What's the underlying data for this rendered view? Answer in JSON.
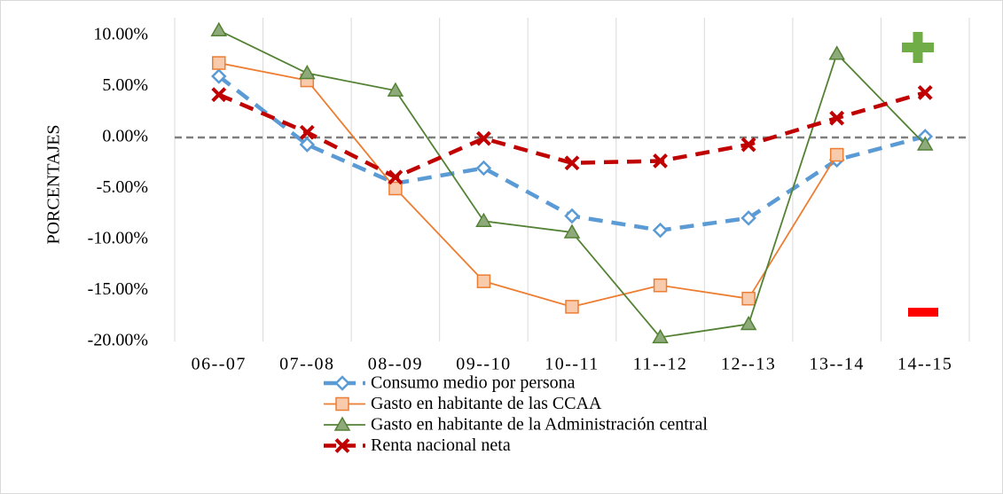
{
  "chart_data": {
    "type": "line",
    "y_label": "PORCENTAJES",
    "categories": [
      "06--07",
      "07--08",
      "08--09",
      "09--10",
      "10--11",
      "11--12",
      "12--13",
      "13--14",
      "14--15"
    ],
    "ylim": [
      -20,
      10
    ],
    "yticks": [
      {
        "value": 10,
        "label": "10.00%"
      },
      {
        "value": 5,
        "label": "5.00%"
      },
      {
        "value": 0,
        "label": "0.00%"
      },
      {
        "value": -5,
        "label": "-5.00%"
      },
      {
        "value": -10,
        "label": "-10.00%"
      },
      {
        "value": -15,
        "label": "-15.00%"
      },
      {
        "value": -20,
        "label": "-20.00%"
      }
    ],
    "series": [
      {
        "name": "Consumo medio por persona",
        "color": "#5b9bd5",
        "dashed": true,
        "marker": "diamond",
        "values": [
          6.0,
          -0.7,
          -4.5,
          -3.0,
          -7.7,
          -9.1,
          -7.9,
          -2.2,
          0.1
        ]
      },
      {
        "name": "Gasto en habitante de las CCAA",
        "color": "#ed7d31",
        "dashed": false,
        "marker": "square",
        "values": [
          7.3,
          5.6,
          -5.0,
          -14.1,
          -16.6,
          -14.5,
          -15.8,
          -1.7,
          null
        ]
      },
      {
        "name": "Gasto en habitante de la Administración central",
        "color": "#548235",
        "dashed": false,
        "marker": "triangle",
        "values": [
          10.5,
          6.3,
          4.6,
          -8.2,
          -9.3,
          -19.6,
          -18.3,
          8.2,
          -0.7
        ]
      },
      {
        "name": "Renta nacional neta",
        "color": "#c00000",
        "dashed": true,
        "marker": "x",
        "values": [
          4.2,
          0.5,
          -3.9,
          -0.1,
          -2.5,
          -2.3,
          -0.7,
          1.9,
          4.4
        ]
      }
    ]
  }
}
